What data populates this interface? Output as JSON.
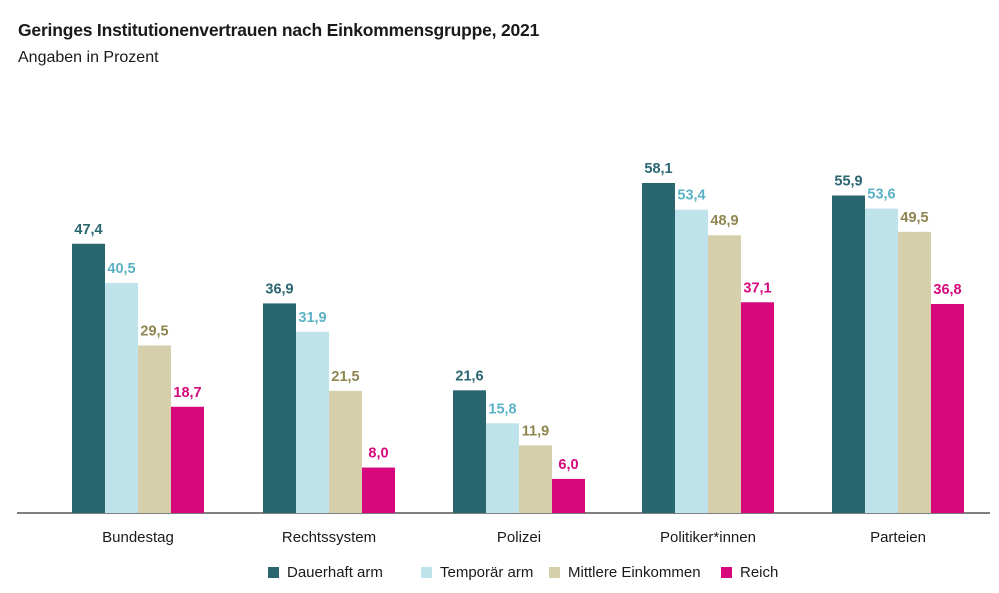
{
  "chart_data": {
    "type": "bar",
    "title": "Geringes Institutionenvertrauen nach Einkommensgruppe, 2021",
    "subtitle": "Angaben in Prozent",
    "categories": [
      "Bundestag",
      "Rechtssystem",
      "Polizei",
      "Politiker*innen",
      "Parteien"
    ],
    "series": [
      {
        "name": "Dauerhaft arm",
        "color": "#2a6670",
        "label_color": "#2a6670",
        "values": [
          47.4,
          36.9,
          21.6,
          58.1,
          55.9
        ],
        "labels": [
          "47,4",
          "36,9",
          "21,6",
          "58,1",
          "55,9"
        ]
      },
      {
        "name": "Temporär arm",
        "color": "#bfe3ea",
        "label_color": "#5bb2c6",
        "values": [
          40.5,
          31.9,
          15.8,
          53.4,
          53.6
        ],
        "labels": [
          "40,5",
          "31,9",
          "15,8",
          "53,4",
          "53,6"
        ]
      },
      {
        "name": "Mittlere Einkommen",
        "color": "#d6cfac",
        "label_color": "#8e8550",
        "values": [
          29.5,
          21.5,
          11.9,
          48.9,
          49.5
        ],
        "labels": [
          "29,5",
          "21,5",
          "11,9",
          "48,9",
          "49,5"
        ]
      },
      {
        "name": "Reich",
        "color": "#d6087c",
        "label_color": "#d6087c",
        "values": [
          18.7,
          8.0,
          6.0,
          37.1,
          36.8
        ],
        "labels": [
          "18,7",
          "8,0",
          "6,0",
          "37,1",
          "36,8"
        ]
      }
    ],
    "ylim": [
      0,
      60
    ],
    "grid": false,
    "legend_position": "bottom"
  }
}
